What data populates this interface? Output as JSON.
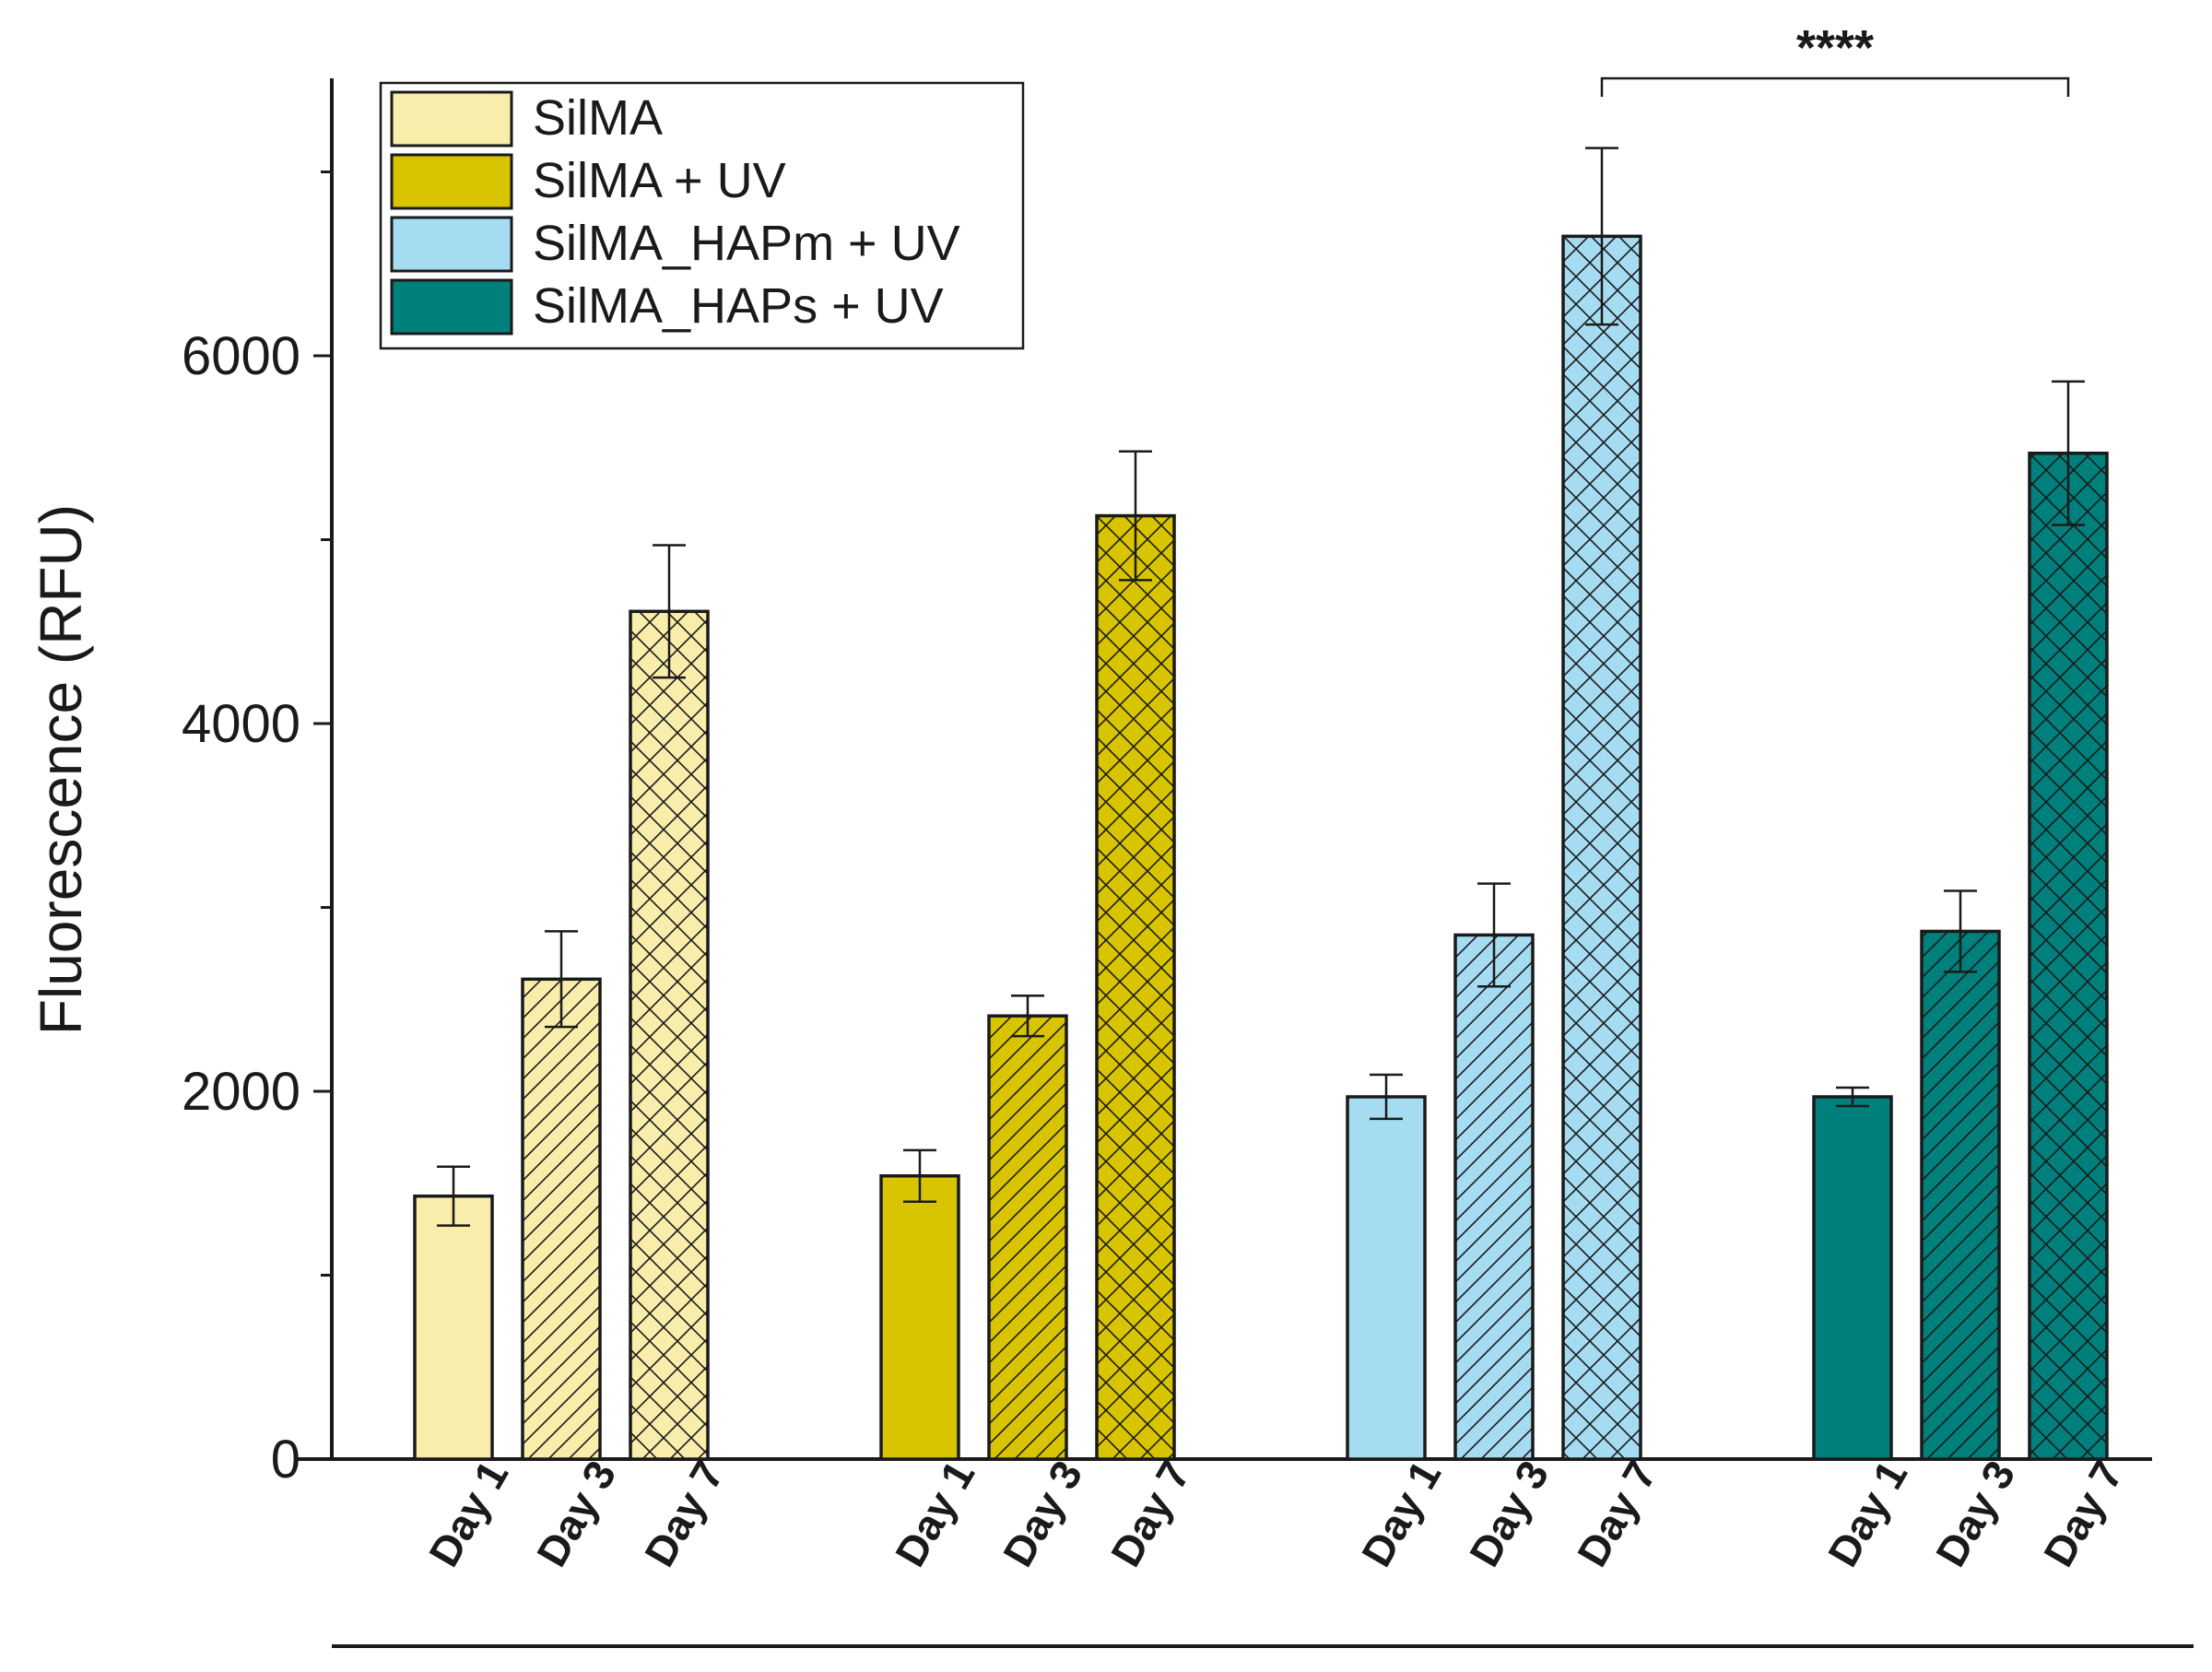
{
  "chart_data": {
    "type": "bar",
    "title": "",
    "xlabel": "",
    "ylabel": "Fluorescence (RFU)",
    "ylim": [
      0,
      7500
    ],
    "yticks": [
      0,
      2000,
      4000,
      6000
    ],
    "ytick_labels": [
      "0",
      "2000",
      "4000",
      "6000"
    ],
    "categories": [
      "Day 1",
      "Day 3",
      "Day 7"
    ],
    "grid": false,
    "legend_position": "top-left",
    "series": [
      {
        "name": "SilMA",
        "color": "#F8EDAA",
        "values": [
          1430,
          2610,
          4610
        ],
        "errors": [
          160,
          260,
          360
        ]
      },
      {
        "name": "SilMA + UV",
        "color": "#D8C400",
        "values": [
          1540,
          2410,
          5130
        ],
        "errors": [
          140,
          110,
          350
        ]
      },
      {
        "name": "SilMA_HAPm + UV",
        "color": "#A6DCF2",
        "values": [
          1970,
          2850,
          6650
        ],
        "errors": [
          120,
          280,
          480
        ]
      },
      {
        "name": "SilMA_HAPs + UV",
        "color": "#00807C",
        "values": [
          1970,
          2870,
          5470
        ],
        "errors": [
          50,
          220,
          390
        ]
      }
    ],
    "patterns": [
      "none",
      "diagonal",
      "crosshatch"
    ],
    "annotations": [
      {
        "text": "****",
        "from_series": 2,
        "to_series": 3,
        "category": "Day 7"
      }
    ]
  }
}
